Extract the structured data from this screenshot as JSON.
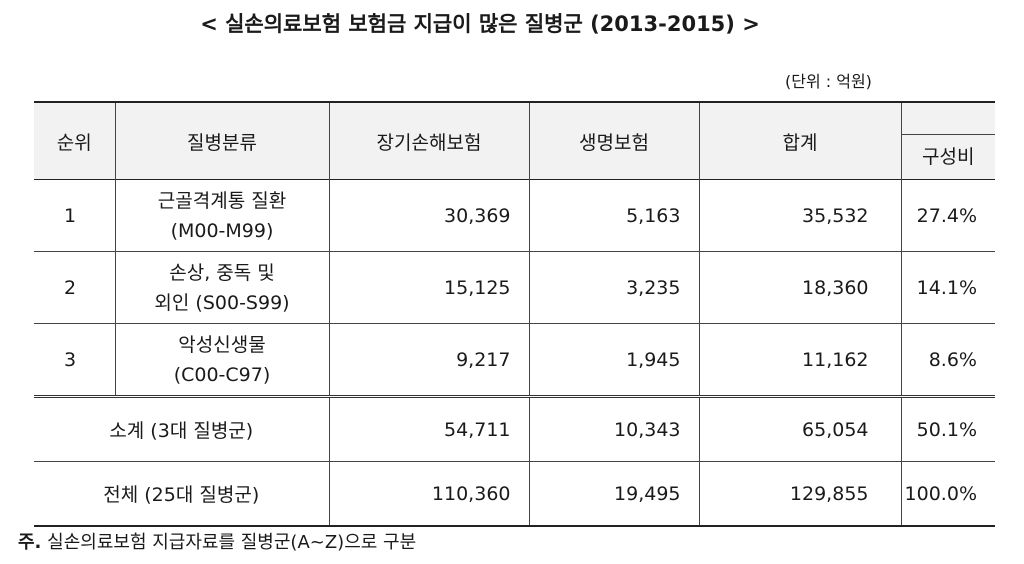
{
  "title": "< 실손의료보험 보험금 지급이 많은 질병군 (2013-2015) >",
  "unit": "(단위 : 억원)",
  "table": {
    "headers": {
      "rank": "순위",
      "category": "질병분류",
      "long_term": "장기손해보험",
      "life": "생명보험",
      "total": "합계",
      "ratio": "구성비"
    },
    "rows": [
      {
        "rank": "1",
        "category_line1": "근골격계통 질환",
        "category_line2": "(M00-M99)",
        "long_term": "30,369",
        "life": "5,163",
        "total": "35,532",
        "ratio": "27.4%"
      },
      {
        "rank": "2",
        "category_line1": "손상, 중독 및",
        "category_line2": "외인 (S00-S99)",
        "long_term": "15,125",
        "life": "3,235",
        "total": "18,360",
        "ratio": "14.1%"
      },
      {
        "rank": "3",
        "category_line1": "악성신생물",
        "category_line2": "(C00-C97)",
        "long_term": "9,217",
        "life": "1,945",
        "total": "11,162",
        "ratio": "8.6%"
      }
    ],
    "subtotal": {
      "label": "소계 (3대 질병군)",
      "long_term": "54,711",
      "life": "10,343",
      "total": "65,054",
      "ratio": "50.1%"
    },
    "grand_total": {
      "label": "전체 (25대 질병군)",
      "long_term": "110,360",
      "life": "19,495",
      "total": "129,855",
      "ratio": "100.0%"
    }
  },
  "note": {
    "mark": "주.",
    "text": "실손의료보험 지급자료를 질병군(A~Z)으로 구분"
  }
}
